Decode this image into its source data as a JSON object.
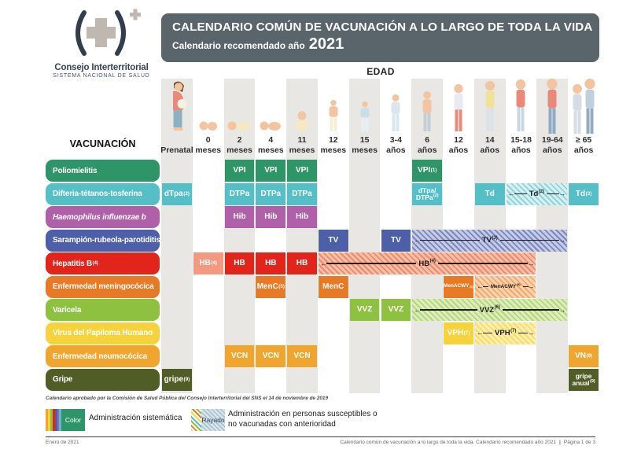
{
  "colors": {
    "titlebar_bg": "#59646B",
    "stripe": "#E9E7E4",
    "footer_separator": "#E8501E"
  },
  "logo": {
    "org": "Consejo Interterritorial",
    "sub": "SISTEMA NACIONAL DE SALUD"
  },
  "header": {
    "title": "CALENDARIO COMÚN DE VACUNACIÓN A LO LARGO DE TODA LA VIDA",
    "subtitle_prefix": "Calendario recomendado año",
    "year": "2021"
  },
  "axis": {
    "edad": "EDAD",
    "vacunacion": "VACUNACIÓN"
  },
  "columns": [
    {
      "age": "Prenatal",
      "unit": "",
      "icon": "pregnant-woman-icon",
      "shaded": true
    },
    {
      "age": "0",
      "unit": "meses",
      "icon": "newborn-baby-icon",
      "shaded": false
    },
    {
      "age": "2",
      "unit": "meses",
      "icon": "baby-lying-icon",
      "shaded": true
    },
    {
      "age": "4",
      "unit": "meses",
      "icon": "infant-lying-icon",
      "shaded": false
    },
    {
      "age": "11",
      "unit": "meses",
      "icon": "baby-sitting-icon",
      "shaded": true
    },
    {
      "age": "12",
      "unit": "meses",
      "icon": "toddler-standing-icon",
      "shaded": false
    },
    {
      "age": "15",
      "unit": "meses",
      "icon": "toddler-icon",
      "shaded": true
    },
    {
      "age": "3-4",
      "unit": "años",
      "icon": "child-icon",
      "shaded": false
    },
    {
      "age": "6",
      "unit": "años",
      "icon": "school-child-icon",
      "shaded": true
    },
    {
      "age": "12",
      "unit": "años",
      "icon": "preteen-icon",
      "shaded": false
    },
    {
      "age": "14",
      "unit": "años",
      "icon": "teenager-icon",
      "shaded": true
    },
    {
      "age": "15-18",
      "unit": "años",
      "icon": "young-adult-icon",
      "shaded": false
    },
    {
      "age": "19-64",
      "unit": "años",
      "icon": "adult-icon",
      "shaded": true
    },
    {
      "age": "≥ 65",
      "unit": "años",
      "icon": "elderly-couple-icon",
      "shaded": false
    }
  ],
  "rows": [
    {
      "id": "poliomielitis",
      "label": "Poliomielitis",
      "sup": "",
      "color": "#2E9568",
      "cells": [
        {
          "type": "box",
          "col": 2,
          "label": "VPI"
        },
        {
          "type": "box",
          "col": 3,
          "label": "VPI"
        },
        {
          "type": "box",
          "col": 4,
          "label": "VPI"
        },
        {
          "type": "box",
          "col": 8,
          "label": "VPI",
          "sup": "(1)"
        }
      ]
    },
    {
      "id": "difteria-tetanos-tosferina",
      "label": "Difteria-tétanos-tosferina",
      "sup": "",
      "color": "#54BFC7",
      "band_bg": "#D9F0F2",
      "band_stripe": "#8ED4DA",
      "cells": [
        {
          "type": "box",
          "col": 0,
          "label": "dTpa",
          "sup": "(2)"
        },
        {
          "type": "box",
          "col": 2,
          "label": "DTPa"
        },
        {
          "type": "box",
          "col": 3,
          "label": "DTPa"
        },
        {
          "type": "box",
          "col": 4,
          "label": "DTPa"
        },
        {
          "type": "box",
          "col": 8,
          "lines": [
            "dTpa/",
            "DTPa"
          ],
          "sup": "(2)"
        },
        {
          "type": "box",
          "col": 10,
          "label": "Td"
        },
        {
          "type": "band",
          "col": 11,
          "col_end": 12,
          "label": "Td",
          "sup": "(2)"
        },
        {
          "type": "box",
          "col": 13,
          "label": "Td",
          "sup": "(2)"
        }
      ]
    },
    {
      "id": "haemophilus-influenzae-b",
      "label": "Haemophilus influenzae b",
      "sup": "",
      "italic": true,
      "color": "#B05FA9",
      "cells": [
        {
          "type": "box",
          "col": 2,
          "label": "Hib"
        },
        {
          "type": "box",
          "col": 3,
          "label": "Hib"
        },
        {
          "type": "box",
          "col": 4,
          "label": "Hib"
        }
      ]
    },
    {
      "id": "sarampion-rubeola-parotiditis",
      "label": "Sarampión-rubeola-parotiditis",
      "sup": "",
      "color": "#4C5FA8",
      "band_bg": "#C6CCE5",
      "band_stripe": "#7B87BF",
      "cells": [
        {
          "type": "box",
          "col": 5,
          "label": "TV"
        },
        {
          "type": "box",
          "col": 7,
          "label": "TV"
        },
        {
          "type": "band",
          "col": 8,
          "col_end": 12,
          "label": "TV",
          "sup": "(3)"
        }
      ]
    },
    {
      "id": "hepatitis-b",
      "label": "Hepatitis B",
      "sup": "(4)",
      "color": "#E1251B",
      "band_bg": "#F5BFA8",
      "band_stripe": "#EC8A6B",
      "cells": [
        {
          "type": "box",
          "col": 1,
          "label": "HB",
          "sup": "(4)",
          "bg": "#F2997F"
        },
        {
          "type": "box",
          "col": 2,
          "label": "HB"
        },
        {
          "type": "box",
          "col": 3,
          "label": "HB"
        },
        {
          "type": "box",
          "col": 4,
          "label": "HB"
        },
        {
          "type": "band",
          "col": 5,
          "col_end": 11,
          "label": "HB",
          "sup": "(4)"
        }
      ]
    },
    {
      "id": "enfermedad-meningococica",
      "label": "Enfermedad meningocócica",
      "sup": "",
      "color": "#E87A25",
      "band_bg": "#F8D4B0",
      "band_stripe": "#F2A96B",
      "cells": [
        {
          "type": "box",
          "col": 3,
          "label": "MenC",
          "sup": "(5)"
        },
        {
          "type": "box",
          "col": 5,
          "label": "MenC"
        },
        {
          "type": "box",
          "col": 9,
          "label": "MenACWY",
          "sup": "(5)",
          "tiny": true
        },
        {
          "type": "band",
          "col": 10,
          "col_end": 11,
          "label": "MenACWY",
          "sup": "(5)",
          "tiny": true
        }
      ]
    },
    {
      "id": "varicela",
      "label": "Varicela",
      "sup": "",
      "color": "#8FC140",
      "band_bg": "#DEEDBE",
      "band_stripe": "#B4D77A",
      "cells": [
        {
          "type": "box",
          "col": 6,
          "label": "VVZ"
        },
        {
          "type": "box",
          "col": 7,
          "label": "VVZ"
        },
        {
          "type": "band",
          "col": 8,
          "col_end": 12,
          "label": "VVZ",
          "sup": "(6)"
        }
      ]
    },
    {
      "id": "virus-del-papiloma-humano",
      "label": "Virus del Papiloma Humano",
      "sup": "",
      "color": "#F6D33C",
      "band_bg": "#FCEFB0",
      "band_stripe": "#F8DC67",
      "cells": [
        {
          "type": "box",
          "col": 9,
          "label": "VPH",
          "sup": "(7)"
        },
        {
          "type": "band",
          "col": 10,
          "col_end": 11,
          "label": "VPH",
          "sup": "(7)"
        }
      ]
    },
    {
      "id": "enfermedad-neumococica",
      "label": "Enfermedad neumocócica",
      "sup": "",
      "color": "#F0A52E",
      "cells": [
        {
          "type": "box",
          "col": 2,
          "label": "VCN"
        },
        {
          "type": "box",
          "col": 3,
          "label": "VCN"
        },
        {
          "type": "box",
          "col": 4,
          "label": "VCN"
        },
        {
          "type": "box",
          "col": 13,
          "label": "VN",
          "sup": "(8)"
        }
      ]
    },
    {
      "id": "gripe",
      "label": "Gripe",
      "sup": "",
      "color": "#505D24",
      "cells": [
        {
          "type": "box",
          "col": 0,
          "label": "gripe",
          "sup": "(9)"
        },
        {
          "type": "box",
          "col": 13,
          "lines": [
            "gripe",
            "anual"
          ],
          "sup": "(9)"
        }
      ]
    }
  ],
  "footnote": "Calendario aprobado por la Comisión de Salud Pública del Consejo Interterritorial del SNS el 14 de noviembre de 2019",
  "legend": {
    "color_swatch_label": "Color",
    "color_text": "Administración sistemática",
    "rayado_swatch_label": "Rayado",
    "rayado_text_line1": "Administración en personas susceptibles o",
    "rayado_text_line2": "no vacunadas con anterioridad"
  },
  "footer": {
    "left": "Enero de 2021",
    "right": "Calendario común de vacunación a lo largo de toda la vida. Calendario recomendado año 2021",
    "page": "Página 1 de 3"
  }
}
